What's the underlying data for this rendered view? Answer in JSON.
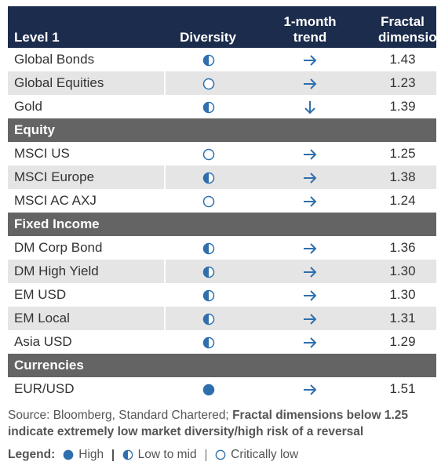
{
  "header": {
    "columns": [
      "Level 1",
      "Diversity",
      "1-month trend",
      "Fractal dimension"
    ]
  },
  "table": {
    "rows": [
      {
        "label": "Global Bonds",
        "value": "1.43"
      },
      {
        "label": "Global Equities",
        "value": "1.23"
      },
      {
        "label": "Gold",
        "value": "1.39"
      },
      {
        "section": "Equity"
      },
      {
        "label": "MSCI US",
        "value": "1.25"
      },
      {
        "label": "MSCI Europe",
        "value": "1.38"
      },
      {
        "label": "MSCI AC AXJ",
        "value": "1.24"
      },
      {
        "section": "Fixed Income"
      },
      {
        "label": "DM Corp Bond",
        "value": "1.36"
      },
      {
        "label": "DM High Yield",
        "value": "1.30"
      },
      {
        "label": "EM USD",
        "value": "1.30"
      },
      {
        "label": "EM Local",
        "value": "1.31"
      },
      {
        "label": "Asia USD",
        "value": "1.29"
      },
      {
        "section": "Currencies"
      },
      {
        "label": "EUR/USD",
        "value": "1.51"
      }
    ]
  },
  "footer": {
    "source": "Source: Bloomberg, Standard Chartered;",
    "note": "Fractal dimensions below 1.25 indicate extremely low market diversity/high risk of a reversal"
  },
  "legend": {
    "title": "Legend:",
    "items": [
      "High",
      "Low to mid",
      "Critically low"
    ]
  }
}
